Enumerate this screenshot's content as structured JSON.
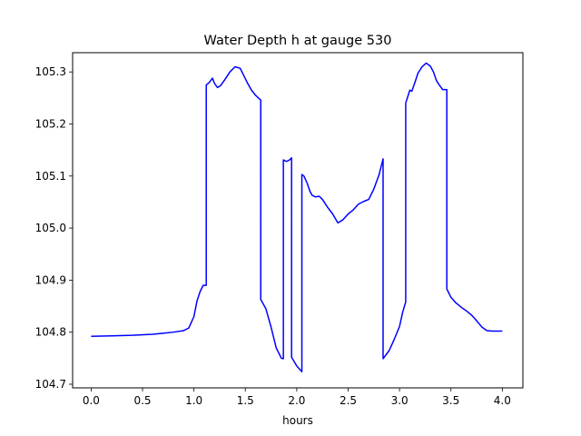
{
  "chart_data": {
    "type": "line",
    "title": "Water Depth h at gauge 530",
    "xlabel": "hours",
    "ylabel": "",
    "xlim": [
      -0.18,
      4.2
    ],
    "ylim": [
      104.693,
      105.337
    ],
    "x_ticks": [
      "0.0",
      "0.5",
      "1.0",
      "1.5",
      "2.0",
      "2.5",
      "3.0",
      "3.5",
      "4.0"
    ],
    "y_ticks": [
      "104.7",
      "104.8",
      "104.9",
      "105.0",
      "105.1",
      "105.2",
      "105.3"
    ],
    "grid": false,
    "legend": "none",
    "series": [
      {
        "color": "#0000ff",
        "x": [
          0.0,
          0.2,
          0.4,
          0.6,
          0.7,
          0.8,
          0.9,
          0.95,
          1.0,
          1.03,
          1.06,
          1.09,
          1.12,
          1.12,
          1.15,
          1.18,
          1.2,
          1.23,
          1.26,
          1.3,
          1.35,
          1.4,
          1.45,
          1.48,
          1.52,
          1.56,
          1.6,
          1.65,
          1.65,
          1.7,
          1.75,
          1.8,
          1.85,
          1.87,
          1.87,
          1.9,
          1.93,
          1.95,
          1.95,
          2.0,
          2.05,
          2.05,
          2.07,
          2.1,
          2.13,
          2.15,
          2.18,
          2.22,
          2.25,
          2.3,
          2.35,
          2.4,
          2.45,
          2.5,
          2.55,
          2.6,
          2.65,
          2.7,
          2.75,
          2.8,
          2.84,
          2.84,
          2.9,
          2.95,
          3.0,
          3.03,
          3.06,
          3.06,
          3.1,
          3.12,
          3.15,
          3.18,
          3.22,
          3.26,
          3.3,
          3.33,
          3.36,
          3.39,
          3.42,
          3.46,
          3.46,
          3.5,
          3.55,
          3.6,
          3.65,
          3.7,
          3.75,
          3.8,
          3.85,
          3.9,
          3.95,
          4.0
        ],
        "y": [
          104.792,
          104.793,
          104.794,
          104.796,
          104.798,
          104.8,
          104.803,
          104.808,
          104.83,
          104.86,
          104.878,
          104.89,
          104.89,
          105.275,
          105.28,
          105.288,
          105.278,
          105.27,
          105.274,
          105.285,
          105.3,
          105.31,
          105.307,
          105.295,
          105.279,
          105.265,
          105.255,
          105.246,
          104.863,
          104.845,
          104.81,
          104.77,
          104.75,
          104.749,
          105.131,
          105.128,
          105.131,
          105.135,
          104.752,
          104.735,
          104.724,
          105.103,
          105.1,
          105.087,
          105.07,
          105.063,
          105.06,
          105.061,
          105.055,
          105.04,
          105.027,
          105.01,
          105.016,
          105.027,
          105.035,
          105.046,
          105.051,
          105.055,
          105.075,
          105.102,
          105.133,
          104.749,
          104.765,
          104.787,
          104.811,
          104.838,
          104.858,
          105.24,
          105.265,
          105.263,
          105.28,
          105.298,
          105.31,
          105.317,
          105.311,
          105.3,
          105.283,
          105.274,
          105.266,
          105.266,
          104.883,
          104.867,
          104.856,
          104.848,
          104.841,
          104.833,
          104.822,
          104.81,
          104.803,
          104.802,
          104.802,
          104.802
        ]
      }
    ]
  }
}
